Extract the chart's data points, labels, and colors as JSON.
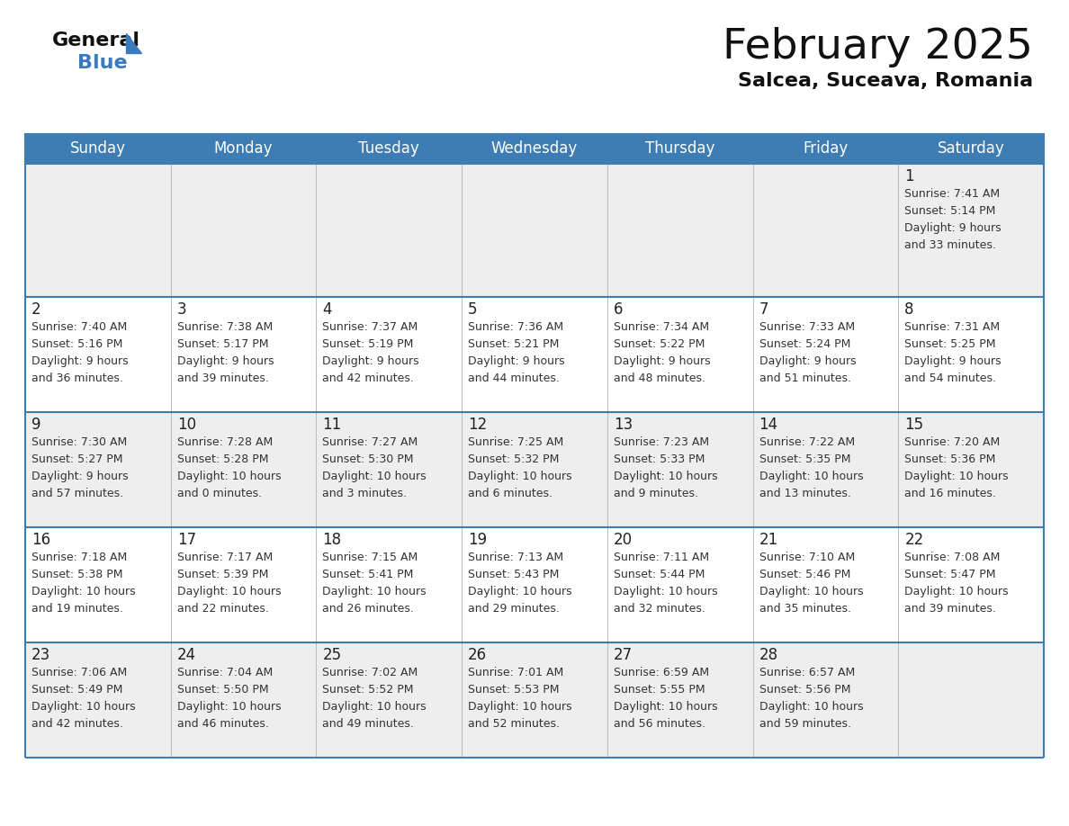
{
  "title": "February 2025",
  "subtitle": "Salcea, Suceava, Romania",
  "days_of_week": [
    "Sunday",
    "Monday",
    "Tuesday",
    "Wednesday",
    "Thursday",
    "Friday",
    "Saturday"
  ],
  "header_bg": "#3d7db3",
  "header_text": "#ffffff",
  "row_bg_odd": "#eeeeee",
  "row_bg_even": "#ffffff",
  "border_color": "#3d7db3",
  "grid_color": "#bbbbbb",
  "day_number_color": "#222222",
  "text_color": "#333333",
  "title_color": "#111111",
  "subtitle_color": "#111111",
  "logo_general_color": "#111111",
  "logo_blue_color": "#3a7abf",
  "calendar_data": [
    [
      null,
      null,
      null,
      null,
      null,
      null,
      {
        "day": 1,
        "sunrise": "7:41 AM",
        "sunset": "5:14 PM",
        "daylight": "9 hours\nand 33 minutes."
      }
    ],
    [
      {
        "day": 2,
        "sunrise": "7:40 AM",
        "sunset": "5:16 PM",
        "daylight": "9 hours\nand 36 minutes."
      },
      {
        "day": 3,
        "sunrise": "7:38 AM",
        "sunset": "5:17 PM",
        "daylight": "9 hours\nand 39 minutes."
      },
      {
        "day": 4,
        "sunrise": "7:37 AM",
        "sunset": "5:19 PM",
        "daylight": "9 hours\nand 42 minutes."
      },
      {
        "day": 5,
        "sunrise": "7:36 AM",
        "sunset": "5:21 PM",
        "daylight": "9 hours\nand 44 minutes."
      },
      {
        "day": 6,
        "sunrise": "7:34 AM",
        "sunset": "5:22 PM",
        "daylight": "9 hours\nand 48 minutes."
      },
      {
        "day": 7,
        "sunrise": "7:33 AM",
        "sunset": "5:24 PM",
        "daylight": "9 hours\nand 51 minutes."
      },
      {
        "day": 8,
        "sunrise": "7:31 AM",
        "sunset": "5:25 PM",
        "daylight": "9 hours\nand 54 minutes."
      }
    ],
    [
      {
        "day": 9,
        "sunrise": "7:30 AM",
        "sunset": "5:27 PM",
        "daylight": "9 hours\nand 57 minutes."
      },
      {
        "day": 10,
        "sunrise": "7:28 AM",
        "sunset": "5:28 PM",
        "daylight": "10 hours\nand 0 minutes."
      },
      {
        "day": 11,
        "sunrise": "7:27 AM",
        "sunset": "5:30 PM",
        "daylight": "10 hours\nand 3 minutes."
      },
      {
        "day": 12,
        "sunrise": "7:25 AM",
        "sunset": "5:32 PM",
        "daylight": "10 hours\nand 6 minutes."
      },
      {
        "day": 13,
        "sunrise": "7:23 AM",
        "sunset": "5:33 PM",
        "daylight": "10 hours\nand 9 minutes."
      },
      {
        "day": 14,
        "sunrise": "7:22 AM",
        "sunset": "5:35 PM",
        "daylight": "10 hours\nand 13 minutes."
      },
      {
        "day": 15,
        "sunrise": "7:20 AM",
        "sunset": "5:36 PM",
        "daylight": "10 hours\nand 16 minutes."
      }
    ],
    [
      {
        "day": 16,
        "sunrise": "7:18 AM",
        "sunset": "5:38 PM",
        "daylight": "10 hours\nand 19 minutes."
      },
      {
        "day": 17,
        "sunrise": "7:17 AM",
        "sunset": "5:39 PM",
        "daylight": "10 hours\nand 22 minutes."
      },
      {
        "day": 18,
        "sunrise": "7:15 AM",
        "sunset": "5:41 PM",
        "daylight": "10 hours\nand 26 minutes."
      },
      {
        "day": 19,
        "sunrise": "7:13 AM",
        "sunset": "5:43 PM",
        "daylight": "10 hours\nand 29 minutes."
      },
      {
        "day": 20,
        "sunrise": "7:11 AM",
        "sunset": "5:44 PM",
        "daylight": "10 hours\nand 32 minutes."
      },
      {
        "day": 21,
        "sunrise": "7:10 AM",
        "sunset": "5:46 PM",
        "daylight": "10 hours\nand 35 minutes."
      },
      {
        "day": 22,
        "sunrise": "7:08 AM",
        "sunset": "5:47 PM",
        "daylight": "10 hours\nand 39 minutes."
      }
    ],
    [
      {
        "day": 23,
        "sunrise": "7:06 AM",
        "sunset": "5:49 PM",
        "daylight": "10 hours\nand 42 minutes."
      },
      {
        "day": 24,
        "sunrise": "7:04 AM",
        "sunset": "5:50 PM",
        "daylight": "10 hours\nand 46 minutes."
      },
      {
        "day": 25,
        "sunrise": "7:02 AM",
        "sunset": "5:52 PM",
        "daylight": "10 hours\nand 49 minutes."
      },
      {
        "day": 26,
        "sunrise": "7:01 AM",
        "sunset": "5:53 PM",
        "daylight": "10 hours\nand 52 minutes."
      },
      {
        "day": 27,
        "sunrise": "6:59 AM",
        "sunset": "5:55 PM",
        "daylight": "10 hours\nand 56 minutes."
      },
      {
        "day": 28,
        "sunrise": "6:57 AM",
        "sunset": "5:56 PM",
        "daylight": "10 hours\nand 59 minutes."
      },
      null
    ]
  ],
  "figsize": [
    11.88,
    9.18
  ],
  "dpi": 100
}
